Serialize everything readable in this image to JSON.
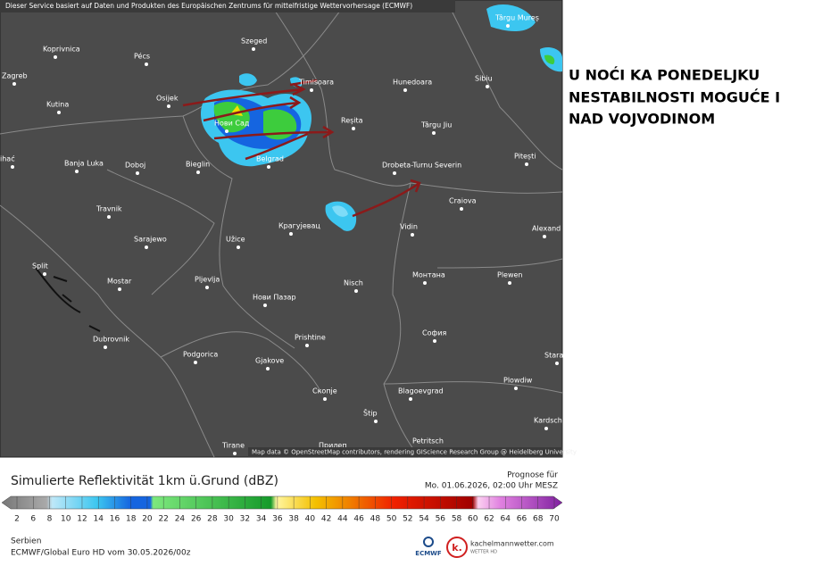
{
  "header": {
    "attribution": "Dieser Service basiert auf Daten und Produkten des Europäischen Zentrums für mittelfristige Wettervorhersage (ECMWF)"
  },
  "map": {
    "cities": [
      "Koprivnica",
      "Pécs",
      "Szeged",
      "Târgu Mureș",
      "Zagreb",
      "Timisoara",
      "Hunedoara",
      "Sibiu",
      "Kutina",
      "Osijek",
      "Нови Сад",
      "Reșita",
      "Târgu Jiu",
      "Pitești",
      "ihać",
      "Banja Luka",
      "Doboj",
      "Bieglin",
      "Belgrad",
      "Drobeta-Turnu Severin",
      "Craiova",
      "Travnik",
      "Крагујевац",
      "Vidin",
      "Alexand",
      "Sarajewo",
      "Užice",
      "Split",
      "Mostar",
      "Pljevlja",
      "Nisch",
      "Монтана",
      "Plewen",
      "Нови Пазар",
      "Dubrovnik",
      "Prishtine",
      "София",
      "Podgorica",
      "Gjakove",
      "Stara",
      "Скопје",
      "Blagoevgrad",
      "Plowdiw",
      "Štip",
      "Kardsch",
      "Tirane",
      "Прилеп",
      "Petritsch"
    ],
    "credits": "Map data © OpenStreetMap contributors, rendering GIScience Research Group @ Heidelberg University"
  },
  "headline": [
    "U NOĆI KA PONEDELJKU",
    "NESTABILNOSTI MOGUĆE I",
    "NAD VOJVODINOM"
  ],
  "legend": {
    "title": "Simulierte Reflektivität 1km ü.Grund (dBZ)",
    "forecast_label": "Prognose für",
    "forecast_time": "Mo. 01.06.2026, 02:00 Uhr MESZ",
    "ticks": [
      2,
      6,
      8,
      10,
      12,
      14,
      16,
      18,
      20,
      22,
      24,
      26,
      28,
      30,
      32,
      34,
      36,
      38,
      40,
      42,
      44,
      46,
      48,
      50,
      52,
      54,
      56,
      58,
      60,
      62,
      64,
      66,
      68,
      70
    ]
  },
  "footer": {
    "region": "Serbien",
    "model": "ECMWF/Global Euro HD vom 30.05.2026/00z",
    "ecmwf": "ECMWF",
    "logo_letter": "k.",
    "site": "kachelmannwetter.com",
    "site_sub": "WETTER HD"
  }
}
